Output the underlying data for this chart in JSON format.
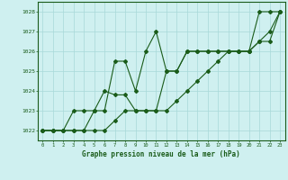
{
  "title": "Graphe pression niveau de la mer (hPa)",
  "background_color": "#cff0f0",
  "grid_color": "#a8d8d8",
  "line_color": "#1a5c1a",
  "xlim": [
    -0.5,
    23.5
  ],
  "ylim": [
    1021.5,
    1028.5
  ],
  "yticks": [
    1022,
    1023,
    1024,
    1025,
    1026,
    1027,
    1028
  ],
  "xticks": [
    0,
    1,
    2,
    3,
    4,
    5,
    6,
    7,
    8,
    9,
    10,
    11,
    12,
    13,
    14,
    15,
    16,
    17,
    18,
    19,
    20,
    21,
    22,
    23
  ],
  "series1": [
    1022,
    1022,
    1022,
    1022,
    1022,
    1023,
    1023,
    1025.5,
    1025.5,
    1024,
    1026,
    1027,
    1025,
    1025,
    1026,
    1026,
    1026,
    1026,
    1026,
    1026,
    1026,
    1028,
    1028,
    1028
  ],
  "series2": [
    1022,
    1022,
    1022,
    1023,
    1023,
    1023,
    1024,
    1023.8,
    1023.8,
    1023,
    1023,
    1023,
    1025,
    1025,
    1026,
    1026,
    1026,
    1026,
    1026,
    1026,
    1026,
    1026.5,
    1027,
    1028
  ],
  "series3": [
    1022,
    1022,
    1022,
    1022,
    1022,
    1022,
    1022,
    1022.5,
    1023,
    1023,
    1023,
    1023,
    1023,
    1023.5,
    1024,
    1024.5,
    1025,
    1025.5,
    1026,
    1026,
    1026,
    1026.5,
    1026.5,
    1028
  ]
}
